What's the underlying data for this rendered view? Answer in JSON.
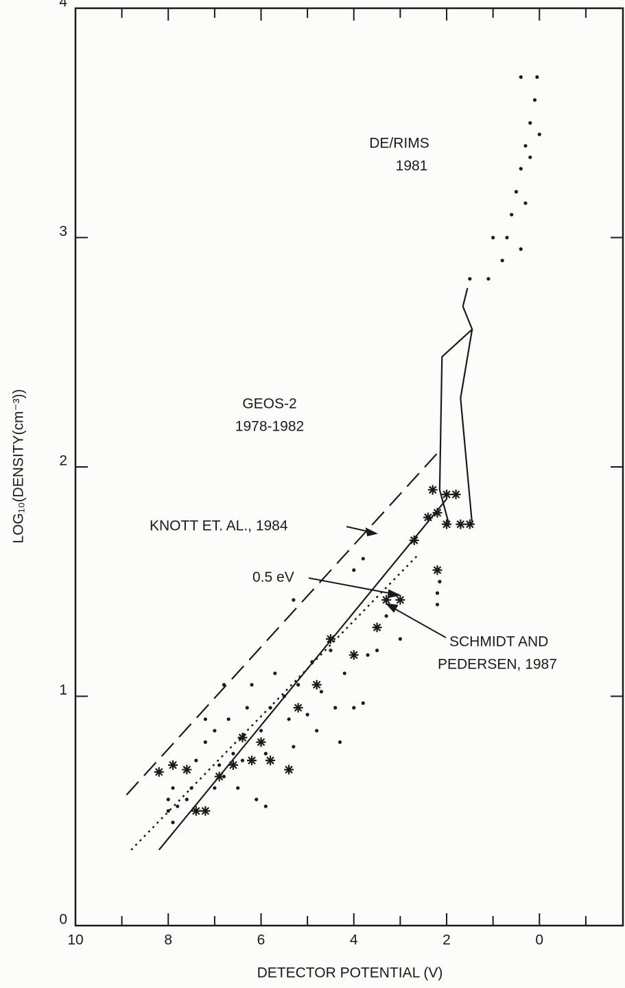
{
  "chart_data": {
    "type": "line",
    "xlabel": "DETECTOR POTENTIAL (V)",
    "ylabel": "LOG₁₀(DENSITY(cm⁻³))",
    "xlim": [
      10,
      -1.8
    ],
    "ylim": [
      0,
      4
    ],
    "xticks": [
      10,
      8,
      6,
      4,
      2,
      0
    ],
    "xminorticks": [
      9,
      7,
      5,
      3,
      1,
      -1
    ],
    "yticks": [
      0,
      1,
      2,
      3,
      4
    ],
    "color": "#1a1a1a",
    "series": [
      {
        "style": "dashed",
        "x": [
          8.9,
          2.2
        ],
        "values": [
          0.57,
          2.06
        ]
      },
      {
        "style": "dotted",
        "x": [
          8.8,
          2.6
        ],
        "values": [
          0.33,
          1.62
        ]
      },
      {
        "style": "solid",
        "x": [
          8.2,
          2.0
        ],
        "values": [
          0.33,
          1.86
        ]
      },
      {
        "style": "solid",
        "x": [
          1.95,
          2.15,
          2.1,
          1.45,
          1.65,
          1.55
        ],
        "values": [
          1.75,
          1.9,
          2.48,
          2.6,
          2.7,
          2.78
        ]
      },
      {
        "style": "solid",
        "x": [
          1.45,
          1.7,
          1.45
        ],
        "values": [
          1.75,
          2.3,
          2.6
        ]
      }
    ],
    "points": [
      {
        "marker": "dot",
        "x": [
          8.0,
          8.0,
          7.9,
          7.8,
          7.6,
          7.5,
          7.4,
          7.2,
          7.0,
          6.9,
          6.8,
          6.7,
          6.6,
          6.4,
          6.3,
          6.2,
          6.0,
          5.9,
          5.8,
          5.7,
          5.5,
          5.4,
          5.3,
          5.2,
          5.0,
          4.9,
          4.8,
          4.7,
          4.5,
          4.4,
          4.3,
          4.2,
          4.0,
          3.8,
          3.7,
          3.5,
          3.3,
          3.0,
          2.2,
          2.15,
          2.2,
          3.8,
          4.0,
          5.3,
          6.8,
          7.2,
          6.1,
          5.9,
          6.5,
          7.0,
          7.9
        ],
        "values": [
          0.55,
          0.5,
          0.6,
          0.52,
          0.55,
          0.6,
          0.72,
          0.8,
          0.85,
          0.7,
          0.65,
          0.9,
          0.75,
          0.72,
          0.95,
          1.05,
          0.85,
          0.75,
          0.95,
          1.1,
          1.0,
          0.9,
          0.78,
          1.05,
          0.92,
          1.15,
          0.85,
          1.02,
          1.2,
          0.95,
          0.8,
          1.1,
          0.95,
          0.97,
          1.18,
          1.2,
          1.35,
          1.25,
          1.45,
          1.5,
          1.4,
          1.6,
          1.55,
          1.42,
          1.05,
          0.9,
          0.55,
          0.52,
          0.6,
          0.6,
          0.45
        ]
      },
      {
        "marker": "asterisk",
        "x": [
          8.2,
          7.9,
          7.6,
          7.4,
          7.2,
          6.9,
          6.6,
          6.4,
          6.2,
          6.0,
          5.8,
          5.4,
          5.2,
          4.8,
          4.5,
          4.0,
          3.5,
          3.3,
          3.0,
          2.7,
          2.4,
          2.3,
          2.2,
          2.0,
          1.8,
          1.7,
          1.5,
          2.0,
          2.2
        ],
        "values": [
          0.67,
          0.7,
          0.68,
          0.5,
          0.5,
          0.65,
          0.7,
          0.82,
          0.72,
          0.8,
          0.72,
          0.68,
          0.95,
          1.05,
          1.25,
          1.18,
          1.3,
          1.42,
          1.42,
          1.68,
          1.78,
          1.9,
          1.8,
          1.88,
          1.88,
          1.75,
          1.75,
          1.75,
          1.55
        ]
      },
      {
        "marker": "dot",
        "x": [
          1.5,
          1.1,
          1.0,
          0.8,
          0.7,
          0.6,
          0.5,
          0.4,
          0.3,
          0.3,
          0.2,
          0.4,
          0.1,
          0.05,
          0.2,
          0.0,
          0.4
        ],
        "values": [
          2.82,
          2.82,
          3.0,
          2.9,
          3.0,
          3.1,
          3.2,
          3.3,
          3.15,
          3.4,
          3.5,
          2.95,
          3.6,
          3.7,
          3.35,
          3.45,
          3.7
        ]
      }
    ],
    "annotations": [
      {
        "lines": [
          "DE/RIMS",
          "1981"
        ]
      },
      {
        "lines": [
          "GEOS-2",
          "1978-1982"
        ]
      },
      {
        "lines": [
          "KNOTT ET. AL., 1984"
        ]
      },
      {
        "lines": [
          "0.5 eV"
        ]
      },
      {
        "lines": [
          "SCHMIDT AND",
          "PEDERSEN, 1987"
        ]
      }
    ]
  }
}
